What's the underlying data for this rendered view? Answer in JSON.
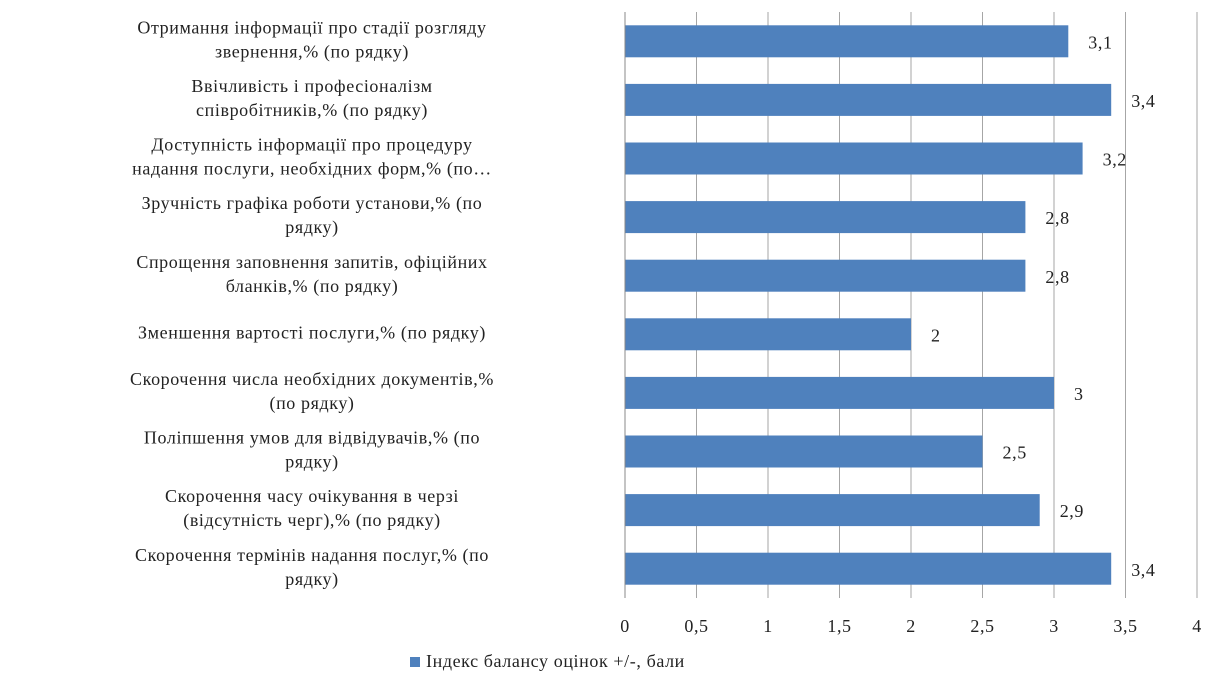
{
  "chart_data": {
    "type": "bar",
    "orientation": "horizontal",
    "categories": [
      [
        "Отримання інформації про стадії розгляду",
        "звернення,% (по рядку)"
      ],
      [
        "Ввічливість і професіоналізм",
        "співробітників,% (по рядку)"
      ],
      [
        "Доступність інформації про процедуру",
        "надання послуги, необхідних форм,% (по…"
      ],
      [
        "Зручність графіка роботи установи,% (по",
        "рядку)"
      ],
      [
        "Спрощення заповнення запитів, офіційних",
        "бланків,% (по рядку)"
      ],
      [
        "Зменшення вартості послуги,% (по рядку)"
      ],
      [
        "Скорочення числа необхідних документів,%",
        "(по рядку)"
      ],
      [
        "Поліпшення умов для відвідувачів,% (по",
        "рядку)"
      ],
      [
        "Скорочення часу очікування в черзі",
        "(відсутність черг),% (по рядку)"
      ],
      [
        "Скорочення термінів надання послуг,% (по",
        "рядку)"
      ]
    ],
    "series": [
      {
        "name": "Індекс балансу оцінок +/-, бали",
        "color": "#4f81bd",
        "values": [
          3.1,
          3.4,
          3.2,
          2.8,
          2.8,
          2,
          3,
          2.5,
          2.9,
          3.4
        ],
        "value_labels": [
          "3,1",
          "3,4",
          "3,2",
          "2,8",
          "2,8",
          "2",
          "3",
          "2,5",
          "2,9",
          "3,4"
        ]
      }
    ],
    "xlim": [
      0,
      4
    ],
    "xticks": [
      0,
      {
        "value": 0.5,
        "label": "0,5"
      },
      1,
      {
        "value": 1.5,
        "label": "1,5"
      },
      2,
      {
        "value": 2.5,
        "label": "2,5"
      },
      3,
      {
        "value": 3.5,
        "label": "3,5"
      },
      4
    ],
    "grid": true,
    "legend": "bottom"
  }
}
